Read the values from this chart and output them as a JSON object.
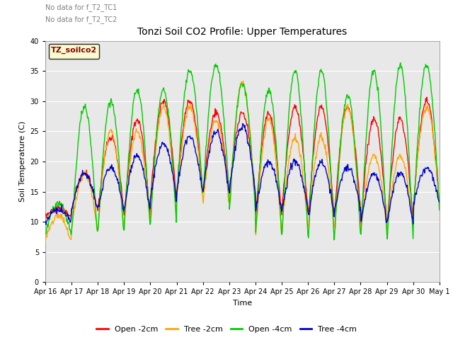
{
  "title": "Tonzi Soil CO2 Profile: Upper Temperatures",
  "xlabel": "Time",
  "ylabel": "Soil Temperature (C)",
  "ylim": [
    0,
    40
  ],
  "yticks": [
    0,
    5,
    10,
    15,
    20,
    25,
    30,
    35,
    40
  ],
  "note1": "No data for f_T2_TC1",
  "note2": "No data for f_T2_TC2",
  "legend_label": "TZ_soilco2",
  "bg_color": "#e8e8e8",
  "line_colors": {
    "open_2cm": "#ff0000",
    "tree_2cm": "#ffa500",
    "open_4cm": "#00cc00",
    "tree_4cm": "#0000cc"
  },
  "legend_entries": [
    "Open -2cm",
    "Tree -2cm",
    "Open -4cm",
    "Tree -4cm"
  ],
  "n_days": 15,
  "start_day": 16
}
